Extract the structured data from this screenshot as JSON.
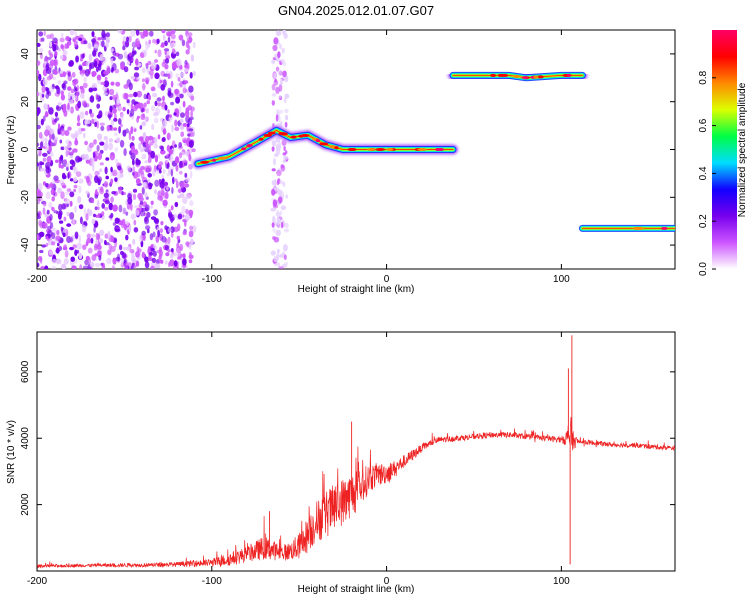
{
  "chart_data": [
    {
      "type": "heatmap",
      "title": "GN04.2025.012.01.07.G07",
      "xlabel": "Height of straight line (km)",
      "ylabel": "Frequency (Hz)",
      "xlim": [
        -200,
        165
      ],
      "ylim": [
        -50,
        50
      ],
      "xticks": [
        -200,
        -100,
        0,
        100
      ],
      "yticks": [
        -40,
        -20,
        0,
        20,
        40
      ],
      "colorbar": {
        "label": "Normalized spectral amplitude",
        "range": [
          0,
          1
        ],
        "ticks": [
          0.0,
          0.2,
          0.4,
          0.6,
          0.8
        ],
        "tick_labels": [
          "0.0",
          "0.2",
          "0.4",
          "0.6",
          "0.8"
        ],
        "colormap": [
          "#ffffff",
          "#cc55ff",
          "#7700ee",
          "#1100ff",
          "#00ddff",
          "#00ff44",
          "#ddff00",
          "#ff8800",
          "#ff0000",
          "#ff0066"
        ]
      },
      "features": [
        {
          "name": "noise",
          "x_range": [
            -200,
            -110
          ],
          "y_range": [
            -50,
            50
          ],
          "amplitude": 0.15
        },
        {
          "name": "noise_column",
          "x_range": [
            -65,
            -57
          ],
          "y_range": [
            -50,
            50
          ],
          "amplitude": 0.05
        },
        {
          "name": "main_track",
          "points": [
            [
              -108,
              -6
            ],
            [
              -90,
              -3
            ],
            [
              -75,
              3
            ],
            [
              -63,
              8
            ],
            [
              -55,
              5
            ],
            [
              -45,
              6
            ],
            [
              -35,
              2
            ],
            [
              -25,
              0
            ],
            [
              -10,
              0
            ],
            [
              0,
              0
            ],
            [
              20,
              0
            ],
            [
              38,
              0
            ]
          ],
          "amplitude": 0.85
        },
        {
          "name": "track_high",
          "points": [
            [
              38,
              31
            ],
            [
              70,
              31
            ],
            [
              80,
              30
            ],
            [
              100,
              31
            ],
            [
              112,
              31
            ]
          ],
          "amplitude": 0.9
        },
        {
          "name": "track_low",
          "points": [
            [
              112,
              -33
            ],
            [
              165,
              -33
            ]
          ],
          "amplitude": 0.9
        }
      ]
    },
    {
      "type": "line",
      "xlabel": "Height of straight line (km)",
      "ylabel": "SNR (10 * v/v)",
      "xlim": [
        -200,
        165
      ],
      "ylim": [
        0,
        7200
      ],
      "xticks": [
        -200,
        -100,
        0,
        100
      ],
      "yticks": [
        2000,
        4000,
        6000
      ],
      "series": [
        {
          "color": "#ee2222",
          "x": [
            -200,
            -170,
            -140,
            -120,
            -100,
            -90,
            -80,
            -70,
            -60,
            -55,
            -50,
            -45,
            -40,
            -35,
            -30,
            -25,
            -20,
            -15,
            -10,
            -5,
            0,
            5,
            10,
            15,
            20,
            25,
            30,
            40,
            50,
            60,
            70,
            80,
            90,
            100,
            103,
            105,
            107,
            110,
            120,
            130,
            140,
            150,
            165
          ],
          "y": [
            150,
            170,
            180,
            200,
            250,
            350,
            500,
            700,
            550,
            600,
            750,
            1100,
            1500,
            1700,
            1900,
            2100,
            2300,
            2500,
            2800,
            2900,
            2950,
            3100,
            3300,
            3500,
            3700,
            3850,
            3950,
            4000,
            4050,
            4100,
            4100,
            4050,
            4000,
            3950,
            4000,
            4100,
            3900,
            3900,
            3850,
            3800,
            3800,
            3750,
            3700
          ],
          "noise": [
            60,
            60,
            70,
            90,
            150,
            250,
            300,
            450,
            300,
            350,
            500,
            700,
            800,
            900,
            900,
            900,
            850,
            700,
            550,
            450,
            400,
            300,
            250,
            200,
            150,
            130,
            120,
            110,
            110,
            110,
            110,
            110,
            110,
            120,
            300,
            900,
            300,
            100,
            90,
            90,
            90,
            90,
            90
          ]
        }
      ],
      "annotations": [
        {
          "x": -67,
          "y": 1800
        },
        {
          "x": -20,
          "y": 4500
        },
        {
          "x": 104,
          "y": 6100
        },
        {
          "x": 106,
          "y": 7100
        },
        {
          "x": 105,
          "y": 200
        }
      ]
    }
  ]
}
